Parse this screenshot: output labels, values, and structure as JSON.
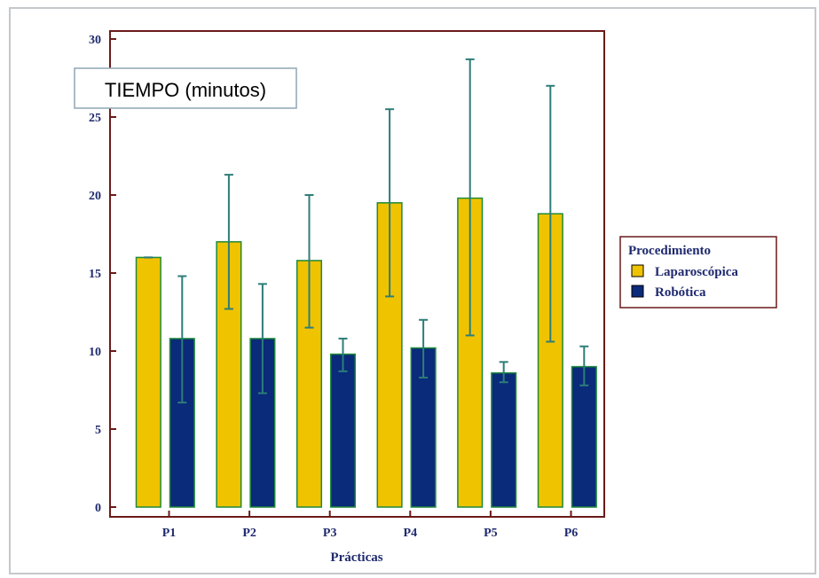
{
  "chart_data": {
    "type": "bar",
    "title": "TIEMPO (minutos)",
    "xlabel": "Prácticas",
    "ylabel": "",
    "categories": [
      "P1",
      "P2",
      "P3",
      "P4",
      "P5",
      "P6"
    ],
    "ylim": [
      0,
      30
    ],
    "yticks": [
      0,
      5,
      10,
      15,
      20,
      25,
      30
    ],
    "legend_title": "Procedimiento",
    "legend_position": "right",
    "series": [
      {
        "name": "Laparoscópica",
        "color": "#f0c300",
        "values": [
          16.0,
          17.0,
          15.8,
          19.5,
          19.8,
          18.8
        ],
        "error_low": [
          16.0,
          12.7,
          11.5,
          13.5,
          11.0,
          10.6
        ],
        "error_high": [
          16.0,
          21.3,
          20.0,
          25.5,
          28.7,
          27.0
        ]
      },
      {
        "name": "Robótica",
        "color": "#0a2a7a",
        "values": [
          10.8,
          10.8,
          9.8,
          10.2,
          8.6,
          9.0
        ],
        "error_low": [
          6.7,
          7.3,
          8.7,
          8.3,
          8.0,
          7.8
        ],
        "error_high": [
          14.8,
          14.3,
          10.8,
          12.0,
          9.3,
          10.3
        ]
      }
    ],
    "colors": {
      "frame": "#6b1a1a",
      "error_bar": "#2e7d78",
      "bar_outline": "#1e8a3a",
      "text": "#1f2a6e"
    }
  }
}
